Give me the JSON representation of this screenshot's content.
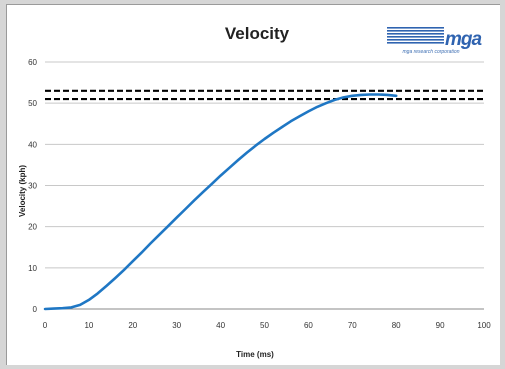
{
  "logo": {
    "mark": "mga",
    "caption": "mga research corporation",
    "color": "#2f63b0"
  },
  "chart_data": {
    "type": "line",
    "title": "Velocity",
    "xlabel": "Time (ms)",
    "ylabel": "Velocity (kph)",
    "xlim": [
      0,
      100
    ],
    "ylim": [
      0,
      60
    ],
    "xticks": [
      0,
      10,
      20,
      30,
      40,
      50,
      60,
      70,
      80,
      90,
      100
    ],
    "yticks": [
      0,
      10,
      20,
      30,
      40,
      50,
      60
    ],
    "grid": "horizontal",
    "series": [
      {
        "color": "#1f77c4",
        "x": [
          0,
          2,
          4,
          6,
          8,
          10,
          12,
          14,
          16,
          18,
          20,
          22,
          24,
          26,
          28,
          30,
          32,
          34,
          36,
          38,
          40,
          42,
          44,
          46,
          48,
          50,
          52,
          54,
          56,
          58,
          60,
          62,
          64,
          66,
          68,
          70,
          72,
          74,
          76,
          78,
          80
        ],
        "y": [
          0,
          0.1,
          0.2,
          0.4,
          1.0,
          2.2,
          3.8,
          5.6,
          7.5,
          9.5,
          11.6,
          13.7,
          15.9,
          18.0,
          20.1,
          22.2,
          24.3,
          26.4,
          28.4,
          30.4,
          32.4,
          34.3,
          36.2,
          38.0,
          39.7,
          41.3,
          42.8,
          44.2,
          45.6,
          46.8,
          48.0,
          49.1,
          50.0,
          50.8,
          51.4,
          51.8,
          52.0,
          52.1,
          52.1,
          52.0,
          51.8
        ]
      }
    ],
    "reference_lines": [
      {
        "y": 53,
        "style": "dashed",
        "color": "#000000"
      },
      {
        "y": 51,
        "style": "dashed",
        "color": "#000000"
      }
    ]
  }
}
